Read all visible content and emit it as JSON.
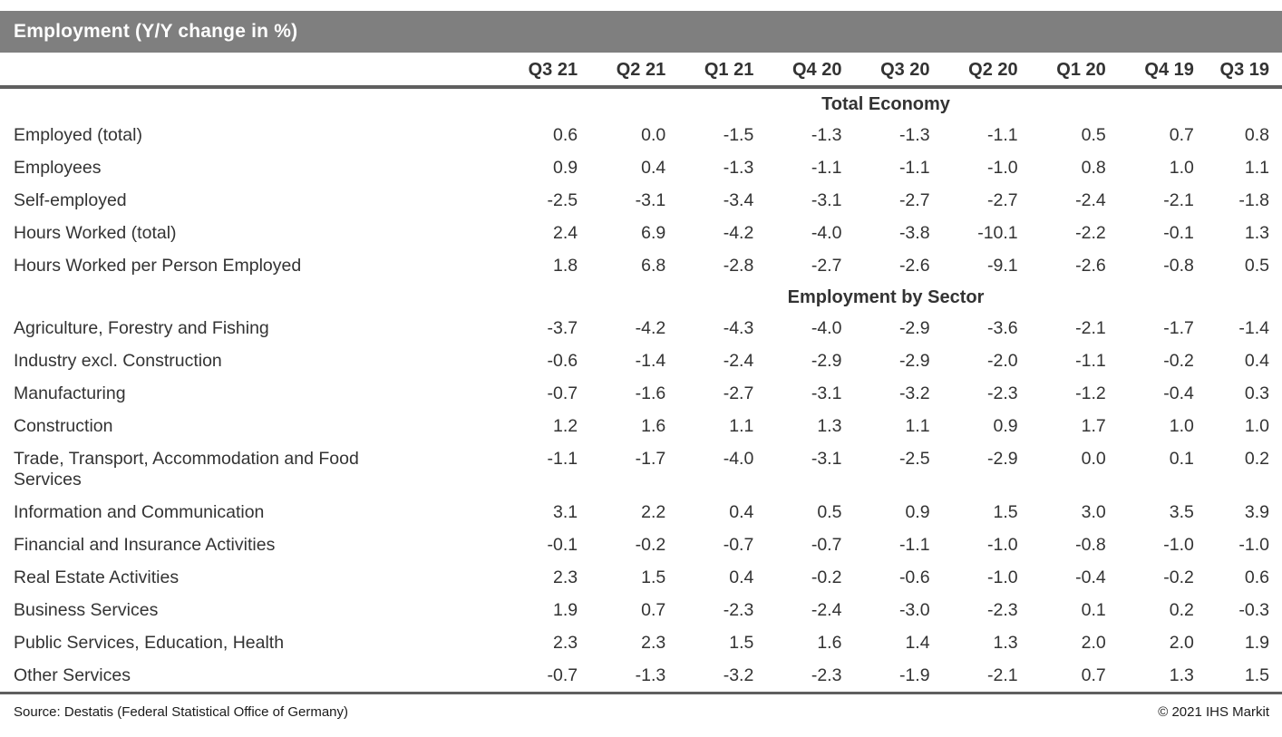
{
  "chart_data": {
    "type": "table",
    "title": "Employment (Y/Y change in %)",
    "columns": [
      "Q3 21",
      "Q2 21",
      "Q1 21",
      "Q4 20",
      "Q3 20",
      "Q2 20",
      "Q1 20",
      "Q4 19",
      "Q3 19"
    ],
    "sections": [
      {
        "header": "Total Economy",
        "rows": [
          {
            "label": "Employed (total)",
            "values": [
              "0.6",
              "0.0",
              "-1.5",
              "-1.3",
              "-1.3",
              "-1.1",
              "0.5",
              "0.7",
              "0.8"
            ]
          },
          {
            "label": "Employees",
            "values": [
              "0.9",
              "0.4",
              "-1.3",
              "-1.1",
              "-1.1",
              "-1.0",
              "0.8",
              "1.0",
              "1.1"
            ]
          },
          {
            "label": "Self-employed",
            "values": [
              "-2.5",
              "-3.1",
              "-3.4",
              "-3.1",
              "-2.7",
              "-2.7",
              "-2.4",
              "-2.1",
              "-1.8"
            ]
          },
          {
            "label": "Hours Worked (total)",
            "values": [
              "2.4",
              "6.9",
              "-4.2",
              "-4.0",
              "-3.8",
              "-10.1",
              "-2.2",
              "-0.1",
              "1.3"
            ]
          },
          {
            "label": "Hours Worked per Person Employed",
            "values": [
              "1.8",
              "6.8",
              "-2.8",
              "-2.7",
              "-2.6",
              "-9.1",
              "-2.6",
              "-0.8",
              "0.5"
            ]
          }
        ]
      },
      {
        "header": "Employment by Sector",
        "rows": [
          {
            "label": "Agriculture, Forestry and Fishing",
            "values": [
              "-3.7",
              "-4.2",
              "-4.3",
              "-4.0",
              "-2.9",
              "-3.6",
              "-2.1",
              "-1.7",
              "-1.4"
            ]
          },
          {
            "label": "Industry excl. Construction",
            "values": [
              "-0.6",
              "-1.4",
              "-2.4",
              "-2.9",
              "-2.9",
              "-2.0",
              "-1.1",
              "-0.2",
              "0.4"
            ]
          },
          {
            "label": "Manufacturing",
            "values": [
              "-0.7",
              "-1.6",
              "-2.7",
              "-3.1",
              "-3.2",
              "-2.3",
              "-1.2",
              "-0.4",
              "0.3"
            ]
          },
          {
            "label": "Construction",
            "values": [
              "1.2",
              "1.6",
              "1.1",
              "1.3",
              "1.1",
              "0.9",
              "1.7",
              "1.0",
              "1.0"
            ]
          },
          {
            "label": "Trade, Transport, Accommodation and Food Services",
            "values": [
              "-1.1",
              "-1.7",
              "-4.0",
              "-3.1",
              "-2.5",
              "-2.9",
              "0.0",
              "0.1",
              "0.2"
            ]
          },
          {
            "label": "Information and Communication",
            "values": [
              "3.1",
              "2.2",
              "0.4",
              "0.5",
              "0.9",
              "1.5",
              "3.0",
              "3.5",
              "3.9"
            ]
          },
          {
            "label": "Financial and Insurance Activities",
            "values": [
              "-0.1",
              "-0.2",
              "-0.7",
              "-0.7",
              "-1.1",
              "-1.0",
              "-0.8",
              "-1.0",
              "-1.0"
            ]
          },
          {
            "label": "Real Estate Activities",
            "values": [
              "2.3",
              "1.5",
              "0.4",
              "-0.2",
              "-0.6",
              "-1.0",
              "-0.4",
              "-0.2",
              "0.6"
            ]
          },
          {
            "label": "Business Services",
            "values": [
              "1.9",
              "0.7",
              "-2.3",
              "-2.4",
              "-3.0",
              "-2.3",
              "0.1",
              "0.2",
              "-0.3"
            ]
          },
          {
            "label": "Public Services, Education, Health",
            "values": [
              "2.3",
              "2.3",
              "1.5",
              "1.6",
              "1.4",
              "1.3",
              "2.0",
              "2.0",
              "1.9"
            ]
          },
          {
            "label": "Other Services",
            "values": [
              "-0.7",
              "-1.3",
              "-3.2",
              "-2.3",
              "-1.9",
              "-2.1",
              "0.7",
              "1.3",
              "1.5"
            ]
          }
        ]
      }
    ],
    "footer": {
      "source": "Source: Destatis (Federal Statistical Office of Germany)",
      "copyright": "© 2021 IHS Markit"
    },
    "colors": {
      "title_bar": "#7f7f7f",
      "title_text": "#ffffff",
      "body_text": "#333333",
      "rule": "#5f5f5f"
    }
  }
}
